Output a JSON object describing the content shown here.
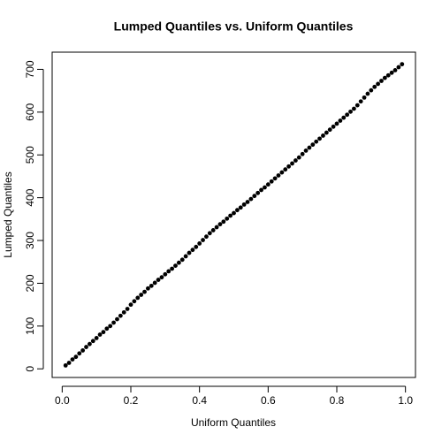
{
  "chart_data": {
    "type": "scatter",
    "title": "Lumped Quantiles vs. Uniform Quantiles",
    "x_label": "Uniform Quantiles",
    "y_label": "Lumped Quantiles",
    "color": "#000000",
    "x": [
      0.01,
      0.02,
      0.03,
      0.04,
      0.05,
      0.06,
      0.07,
      0.08,
      0.09,
      0.1,
      0.11,
      0.12,
      0.13,
      0.14,
      0.15,
      0.16,
      0.17,
      0.18,
      0.19,
      0.2,
      0.21,
      0.22,
      0.23,
      0.24,
      0.25,
      0.26,
      0.27,
      0.28,
      0.29,
      0.3,
      0.31,
      0.32,
      0.33,
      0.34,
      0.35,
      0.36,
      0.37,
      0.38,
      0.39,
      0.4,
      0.41,
      0.42,
      0.43,
      0.44,
      0.45,
      0.46,
      0.47,
      0.48,
      0.49,
      0.5,
      0.51,
      0.52,
      0.53,
      0.54,
      0.55,
      0.56,
      0.57,
      0.58,
      0.59,
      0.6,
      0.61,
      0.62,
      0.63,
      0.64,
      0.65,
      0.66,
      0.67,
      0.68,
      0.69,
      0.7,
      0.71,
      0.72,
      0.73,
      0.74,
      0.75,
      0.76,
      0.77,
      0.78,
      0.79,
      0.8,
      0.81,
      0.82,
      0.83,
      0.84,
      0.85,
      0.86,
      0.87,
      0.88,
      0.89,
      0.9,
      0.91,
      0.92,
      0.93,
      0.94,
      0.95,
      0.96,
      0.97,
      0.98,
      0.99
    ],
    "values": [
      8,
      14,
      22,
      28,
      36,
      43,
      51,
      58,
      65,
      72,
      80,
      86,
      94,
      100,
      108,
      116,
      124,
      132,
      140,
      150,
      158,
      166,
      173,
      180,
      188,
      194,
      201,
      208,
      214,
      221,
      228,
      234,
      241,
      248,
      255,
      263,
      271,
      278,
      285,
      293,
      301,
      309,
      317,
      324,
      331,
      338,
      344,
      351,
      358,
      364,
      371,
      377,
      384,
      390,
      397,
      404,
      411,
      418,
      424,
      431,
      438,
      445,
      452,
      459,
      466,
      473,
      480,
      487,
      494,
      502,
      510,
      517,
      524,
      531,
      538,
      545,
      552,
      559,
      566,
      573,
      580,
      587,
      594,
      601,
      608,
      616,
      625,
      634,
      643,
      651,
      659,
      666,
      673,
      680,
      686,
      692,
      698,
      705,
      712
    ],
    "xlim": [
      -0.0292,
      1.0292
    ],
    "ylim": [
      -20.16,
      740.16
    ],
    "xticks": [
      {
        "value": 0,
        "label": "0.0"
      },
      0.2,
      0.4,
      0.6,
      0.8,
      {
        "value": 1,
        "label": "1.0"
      }
    ],
    "yticks": [
      0,
      100,
      200,
      300,
      400,
      500,
      600,
      700
    ]
  }
}
